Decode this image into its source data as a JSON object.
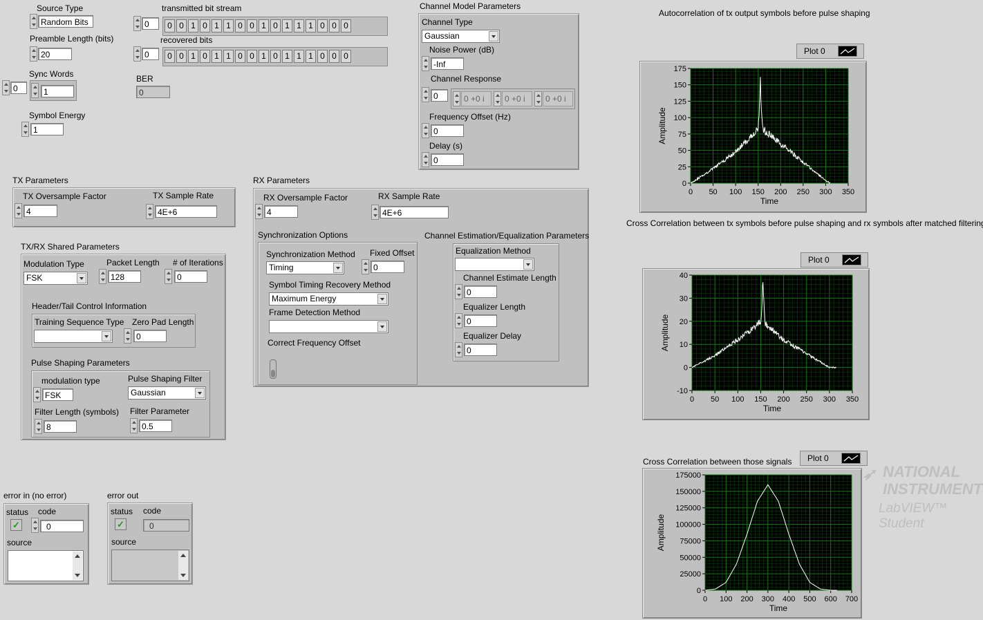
{
  "source": {
    "label": "Source Type",
    "value": "Random Bits"
  },
  "preamble": {
    "label": "Preamble Length (bits)",
    "value": "20"
  },
  "sync_words": {
    "label": "Sync Words",
    "index": "0",
    "value": "1"
  },
  "symbol_energy": {
    "label": "Symbol Energy",
    "value": "1"
  },
  "tx_bits": {
    "label": "transmitted bit stream",
    "index": "0",
    "bits": [
      "0",
      "0",
      "1",
      "0",
      "1",
      "1",
      "0",
      "0",
      "1",
      "0",
      "1",
      "1",
      "1",
      "0",
      "0",
      "0"
    ]
  },
  "rx_bits": {
    "label": "recovered bits",
    "index": "0",
    "bits": [
      "0",
      "0",
      "1",
      "0",
      "1",
      "1",
      "0",
      "0",
      "1",
      "0",
      "1",
      "1",
      "1",
      "0",
      "0",
      "0"
    ]
  },
  "ber": {
    "label": "BER",
    "value": "0"
  },
  "channel": {
    "title": "Channel Model Parameters",
    "type_label": "Channel Type",
    "type_value": "Gaussian",
    "noise_label": "Noise Power (dB)",
    "noise_value": "-Inf",
    "response_label": "Channel Response",
    "response_index": "0",
    "response_values": [
      "0 +0 i",
      "0 +0 i",
      "0 +0 i"
    ],
    "freq_label": "Frequency Offset (Hz)",
    "freq_value": "0",
    "delay_label": "Delay (s)",
    "delay_value": "0"
  },
  "tx": {
    "title": "TX Parameters",
    "oversample_label": "TX Oversample Factor",
    "oversample_value": "4",
    "rate_label": "TX Sample Rate",
    "rate_value": "4E+6"
  },
  "shared": {
    "title": "TX/RX Shared Parameters",
    "mod_label": "Modulation Type",
    "mod_value": "FSK",
    "packet_label": "Packet Length",
    "packet_value": "128",
    "iter_label": "# of Iterations",
    "iter_value": "0",
    "header_title": "Header/Tail Control Information",
    "training_label": "Training Sequence Type",
    "training_value": "",
    "zeropad_label": "Zero Pad Length",
    "zeropad_value": "0",
    "pulse_title": "Pulse Shaping Parameters",
    "pmod_label": "modulation type",
    "pmod_value": "FSK",
    "filter_label": "Pulse Shaping Filter",
    "filter_value": "Gaussian",
    "flen_label": "Filter Length (symbols)",
    "flen_value": "8",
    "fparam_label": "Filter Parameter",
    "fparam_value": "0.5"
  },
  "rx": {
    "title": "RX Parameters",
    "oversample_label": "RX Oversample Factor",
    "oversample_value": "4",
    "rate_label": "RX Sample Rate",
    "rate_value": "4E+6",
    "sync_title": "Synchronization Options",
    "syncmethod_label": "Synchronization Method",
    "syncmethod_value": "Timing",
    "fixed_label": "Fixed Offset",
    "fixed_value": "0",
    "timing_label": "Symbol Timing Recovery Method",
    "timing_value": "Maximum Energy",
    "frame_label": "Frame Detection Method",
    "frame_value": "",
    "cfo_label": "Correct Frequency Offset",
    "est_title": "Channel Estimation/Equalization Parameters",
    "eqm_label": "Equalization Method",
    "eqm_value": "",
    "cel_label": "Channel Estimate Length",
    "cel_value": "0",
    "eql_label": "Equalizer Length",
    "eql_value": "0",
    "eqd_label": "Equalizer Delay",
    "eqd_value": "0"
  },
  "error_in": {
    "title": "error in (no error)",
    "status_label": "status",
    "code_label": "code",
    "code_value": "0",
    "source_label": "source"
  },
  "error_out": {
    "title": "error out",
    "status_label": "status",
    "code_label": "code",
    "code_value": "0",
    "source_label": "source"
  },
  "watermark": {
    "line1": "NATIONAL",
    "line2": "INSTRUMENTS",
    "line3": "LabVIEW™ Student"
  },
  "colors": {
    "plot_bg": "#000000",
    "grid": "#0f7a0f",
    "trace": "#ffffff"
  },
  "chart_data": [
    {
      "type": "line",
      "title": "Autocorrelation of tx output symbols before pulse shaping",
      "legend": "Plot 0",
      "xlabel": "Time",
      "ylabel": "Amplitude",
      "xlim": [
        0,
        350
      ],
      "ylim": [
        0,
        175
      ],
      "xticks": [
        0,
        50,
        100,
        150,
        200,
        250,
        300,
        350
      ],
      "yticks": [
        0,
        25,
        50,
        75,
        100,
        125,
        150,
        175
      ],
      "series": [
        {
          "name": "Plot 0",
          "x": [
            0,
            50,
            100,
            140,
            150,
            152,
            155,
            158,
            160,
            200,
            250,
            300,
            310
          ],
          "y": [
            0,
            22,
            48,
            75,
            85,
            100,
            155,
            100,
            82,
            60,
            32,
            4,
            0
          ]
        }
      ],
      "grid": true
    },
    {
      "type": "line",
      "title": "Cross Correlation between tx symbols before pulse shaping and rx symbols after matched filtering",
      "legend": "Plot 0",
      "xlabel": "Time",
      "ylabel": "Amplitude",
      "xlim": [
        0,
        350
      ],
      "ylim": [
        -10,
        40
      ],
      "xticks": [
        0,
        50,
        100,
        150,
        200,
        250,
        300,
        350
      ],
      "yticks": [
        -10,
        0,
        10,
        20,
        30,
        40
      ],
      "series": [
        {
          "name": "Plot 0",
          "x": [
            0,
            50,
            100,
            140,
            150,
            152,
            155,
            158,
            160,
            200,
            250,
            300,
            315
          ],
          "y": [
            0,
            5,
            12,
            18,
            20,
            24,
            38,
            24,
            19,
            12,
            6,
            0,
            0
          ]
        }
      ],
      "grid": true
    },
    {
      "type": "line",
      "title": "Cross Correlation between those signals",
      "legend": "Plot 0",
      "xlabel": "Time",
      "ylabel": "Amplitude",
      "xlim": [
        0,
        700
      ],
      "ylim": [
        0,
        175000
      ],
      "xticks": [
        0,
        100,
        200,
        300,
        400,
        500,
        600,
        700
      ],
      "yticks": [
        0,
        25000,
        50000,
        75000,
        100000,
        125000,
        150000,
        175000
      ],
      "series": [
        {
          "name": "Plot 0",
          "x": [
            0,
            50,
            100,
            150,
            200,
            250,
            300,
            350,
            400,
            450,
            500,
            550,
            600,
            630
          ],
          "y": [
            0,
            2000,
            12000,
            40000,
            85000,
            135000,
            160000,
            135000,
            85000,
            40000,
            12000,
            2000,
            0,
            0
          ]
        }
      ],
      "grid": true
    }
  ]
}
